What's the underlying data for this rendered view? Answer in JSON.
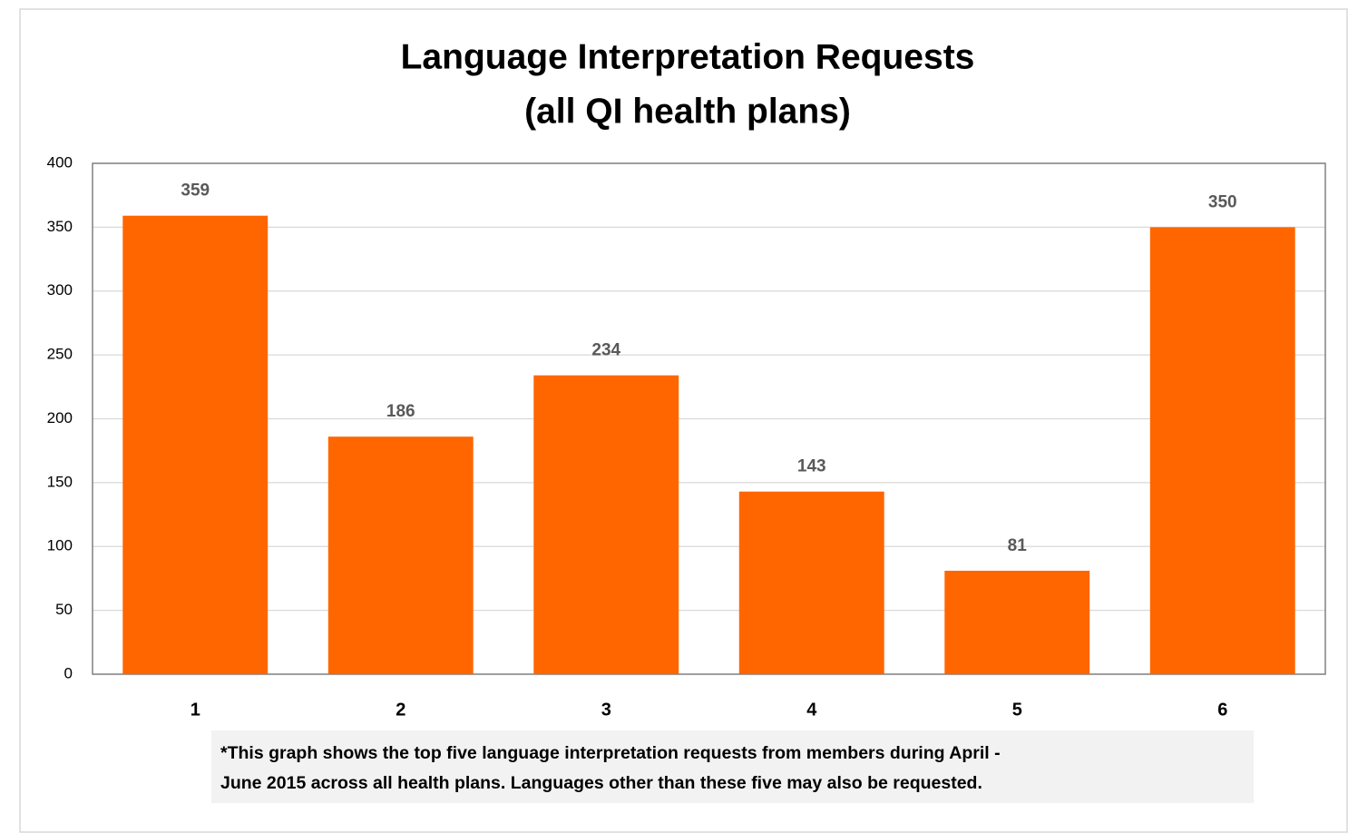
{
  "chart_data": {
    "type": "bar",
    "title": [
      "Language Interpretation Requests",
      "(all QI health plans)"
    ],
    "categories": [
      "1",
      "2",
      "3",
      "4",
      "5",
      "6"
    ],
    "values": [
      359,
      186,
      234,
      143,
      81,
      350
    ],
    "color": "#ff6600",
    "ylim": [
      0,
      400
    ],
    "yticks": [
      0,
      50,
      100,
      150,
      200,
      250,
      300,
      350,
      400
    ],
    "grid": true,
    "note": [
      "*This graph shows the top five language interpretation requests from members during April -",
      "June 2015 across all health plans. Languages other than these five may also be requested."
    ]
  }
}
